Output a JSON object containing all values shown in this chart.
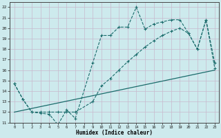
{
  "xlabel": "Humidex (Indice chaleur)",
  "bg_color": "#cdeaed",
  "grid_color_major": "#c8b8cc",
  "grid_color_minor": "#ddd4e0",
  "line_color": "#1a6b6b",
  "xlim": [
    -0.5,
    23.5
  ],
  "ylim": [
    11,
    22.5
  ],
  "xticks": [
    0,
    1,
    2,
    3,
    4,
    5,
    6,
    7,
    8,
    9,
    10,
    11,
    12,
    13,
    14,
    15,
    16,
    17,
    18,
    19,
    20,
    21,
    22,
    23
  ],
  "yticks": [
    11,
    12,
    13,
    14,
    15,
    16,
    17,
    18,
    19,
    20,
    21,
    22
  ],
  "line1_x": [
    0,
    1,
    2,
    3,
    4,
    5,
    6,
    7,
    9,
    10,
    11,
    12,
    13,
    14,
    15,
    16,
    17,
    18,
    19,
    20,
    21,
    22,
    23
  ],
  "line1_y": [
    14.7,
    13.2,
    12.0,
    11.9,
    11.8,
    10.8,
    12.2,
    11.4,
    16.7,
    19.3,
    19.3,
    20.1,
    20.1,
    22.0,
    19.9,
    20.4,
    20.6,
    20.8,
    20.8,
    19.5,
    18.0,
    20.8,
    16.7
  ],
  "line2_x": [
    0,
    1,
    2,
    3,
    4,
    5,
    6,
    7,
    9,
    10,
    11,
    12,
    13,
    14,
    15,
    16,
    17,
    18,
    19,
    20,
    21,
    22,
    23
  ],
  "line2_y": [
    14.7,
    13.2,
    12.0,
    12.0,
    12.0,
    12.0,
    12.0,
    12.0,
    13.0,
    14.5,
    15.2,
    16.0,
    16.8,
    17.5,
    18.2,
    18.8,
    19.3,
    19.7,
    20.0,
    19.5,
    18.0,
    20.8,
    16.2
  ],
  "line3_x": [
    0,
    23
  ],
  "line3_y": [
    12.0,
    16.0
  ],
  "figsize": [
    3.2,
    2.0
  ],
  "dpi": 100
}
